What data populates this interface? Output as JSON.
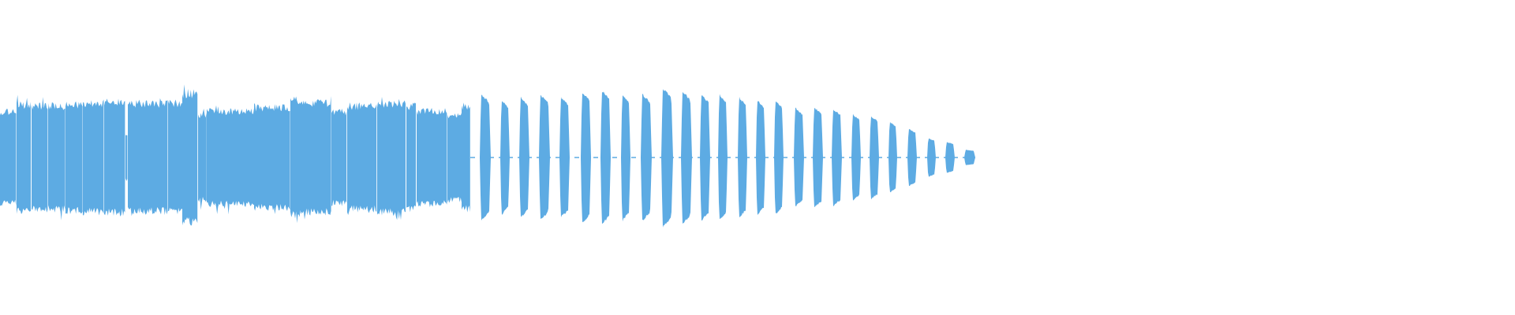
{
  "waveform": {
    "color": "#5dabe3",
    "background": "#ffffff",
    "dense_section": {
      "segments": [
        {
          "start": 0.0,
          "end": 0.021,
          "amp": 0.62
        },
        {
          "start": 0.021,
          "end": 0.04,
          "amp": 0.72
        },
        {
          "start": 0.04,
          "end": 0.061,
          "amp": 0.7
        },
        {
          "start": 0.061,
          "end": 0.083,
          "amp": 0.7
        },
        {
          "start": 0.083,
          "end": 0.105,
          "amp": 0.72
        },
        {
          "start": 0.105,
          "end": 0.132,
          "amp": 0.74
        },
        {
          "start": 0.132,
          "end": 0.159,
          "amp": 0.75
        },
        {
          "start": 0.159,
          "end": 0.162,
          "amp": 0.3
        },
        {
          "start": 0.162,
          "end": 0.213,
          "amp": 0.73
        },
        {
          "start": 0.213,
          "end": 0.231,
          "amp": 0.74
        },
        {
          "start": 0.231,
          "end": 0.251,
          "amp": 0.87
        },
        {
          "start": 0.251,
          "end": 0.262,
          "amp": 0.58
        },
        {
          "start": 0.262,
          "end": 0.322,
          "amp": 0.63
        },
        {
          "start": 0.322,
          "end": 0.368,
          "amp": 0.68
        },
        {
          "start": 0.368,
          "end": 0.38,
          "amp": 0.78
        },
        {
          "start": 0.38,
          "end": 0.42,
          "amp": 0.74
        },
        {
          "start": 0.42,
          "end": 0.44,
          "amp": 0.62
        },
        {
          "start": 0.44,
          "end": 0.478,
          "amp": 0.7
        },
        {
          "start": 0.478,
          "end": 0.515,
          "amp": 0.73
        },
        {
          "start": 0.515,
          "end": 0.528,
          "amp": 0.7
        },
        {
          "start": 0.528,
          "end": 0.567,
          "amp": 0.63
        },
        {
          "start": 0.567,
          "end": 0.585,
          "amp": 0.58
        },
        {
          "start": 0.585,
          "end": 0.596,
          "amp": 0.7
        }
      ],
      "end": 0.596
    },
    "pulses": [
      {
        "start": 0.608,
        "end": 0.622,
        "amp": 0.82
      },
      {
        "start": 0.634,
        "end": 0.646,
        "amp": 0.74
      },
      {
        "start": 0.658,
        "end": 0.671,
        "amp": 0.78
      },
      {
        "start": 0.683,
        "end": 0.697,
        "amp": 0.81
      },
      {
        "start": 0.709,
        "end": 0.722,
        "amp": 0.78
      },
      {
        "start": 0.736,
        "end": 0.749,
        "amp": 0.85
      },
      {
        "start": 0.761,
        "end": 0.774,
        "amp": 0.87
      },
      {
        "start": 0.787,
        "end": 0.799,
        "amp": 0.82
      },
      {
        "start": 0.812,
        "end": 0.826,
        "amp": 0.82
      },
      {
        "start": 0.838,
        "end": 0.853,
        "amp": 0.9
      },
      {
        "start": 0.863,
        "end": 0.877,
        "amp": 0.86
      },
      {
        "start": 0.887,
        "end": 0.9,
        "amp": 0.82
      },
      {
        "start": 0.91,
        "end": 0.922,
        "amp": 0.82
      },
      {
        "start": 0.935,
        "end": 0.947,
        "amp": 0.78
      },
      {
        "start": 0.958,
        "end": 0.97,
        "amp": 0.74
      },
      {
        "start": 0.981,
        "end": 0.993,
        "amp": 0.74
      },
      {
        "start": 1.006,
        "end": 1.019,
        "amp": 0.64
      },
      {
        "start": 1.03,
        "end": 1.043,
        "amp": 0.65
      },
      {
        "start": 1.054,
        "end": 1.067,
        "amp": 0.63
      },
      {
        "start": 1.079,
        "end": 1.091,
        "amp": 0.56
      },
      {
        "start": 1.102,
        "end": 1.114,
        "amp": 0.54
      },
      {
        "start": 1.126,
        "end": 1.137,
        "amp": 0.46
      },
      {
        "start": 1.15,
        "end": 1.162,
        "amp": 0.37
      },
      {
        "start": 1.175,
        "end": 1.186,
        "amp": 0.25
      },
      {
        "start": 1.198,
        "end": 1.21,
        "amp": 0.2
      },
      {
        "start": 1.222,
        "end": 1.236,
        "amp": 0.1
      }
    ],
    "duration": 1.92
  }
}
